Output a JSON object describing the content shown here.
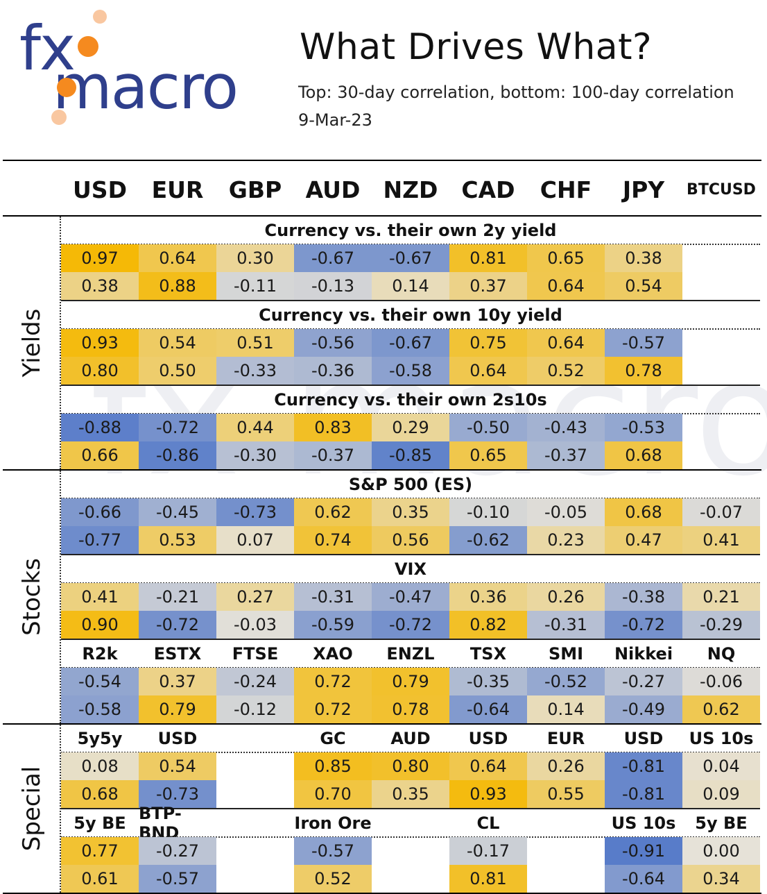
{
  "header": {
    "logo_fx": "fx",
    "logo_macro": "macro",
    "title": "What Drives What?",
    "subtitle": "Top: 30-day correlation, bottom: 100-day correlation",
    "date": "9-Mar-23"
  },
  "colors": {
    "positive": "#f5b800",
    "negative": "#4a72c8",
    "neutral": "#e6e2d8",
    "logo_blue": "#2f3f8c",
    "logo_orange": "#f58a1f"
  },
  "chart_data": {
    "type": "heatmap",
    "title": "What Drives What?",
    "columns": [
      "USD",
      "EUR",
      "GBP",
      "AUD",
      "NZD",
      "CAD",
      "CHF",
      "JPY",
      "BTCUSD"
    ],
    "groups": [
      {
        "label": "Yields",
        "sections": [
          {
            "title": "Currency vs. their own 2y yield",
            "sublabels": null,
            "top": [
              0.97,
              0.64,
              0.3,
              -0.67,
              -0.67,
              0.81,
              0.65,
              0.38,
              null
            ],
            "bottom": [
              0.38,
              0.88,
              -0.11,
              -0.13,
              0.14,
              0.37,
              0.64,
              0.54,
              null
            ]
          },
          {
            "title": "Currency vs. their own 10y yield",
            "sublabels": null,
            "top": [
              0.93,
              0.54,
              0.51,
              -0.56,
              -0.67,
              0.75,
              0.64,
              -0.57,
              null
            ],
            "bottom": [
              0.8,
              0.5,
              -0.33,
              -0.36,
              -0.58,
              0.64,
              0.52,
              0.78,
              null
            ]
          },
          {
            "title": "Currency vs. their own 2s10s",
            "sublabels": null,
            "top": [
              -0.88,
              -0.72,
              0.44,
              0.83,
              0.29,
              -0.5,
              -0.43,
              -0.53,
              null
            ],
            "bottom": [
              0.66,
              -0.86,
              -0.3,
              -0.37,
              -0.85,
              0.65,
              -0.37,
              0.68,
              null
            ]
          }
        ]
      },
      {
        "label": "Stocks",
        "sections": [
          {
            "title": "S&P 500 (ES)",
            "sublabels": null,
            "top": [
              -0.66,
              -0.45,
              -0.73,
              0.62,
              0.35,
              -0.1,
              -0.05,
              0.68,
              -0.07
            ],
            "bottom": [
              -0.77,
              0.53,
              0.07,
              0.74,
              0.56,
              -0.62,
              0.23,
              0.47,
              0.41
            ]
          },
          {
            "title": "VIX",
            "sublabels": null,
            "top": [
              0.41,
              -0.21,
              0.27,
              -0.31,
              -0.47,
              0.36,
              0.26,
              -0.38,
              0.21
            ],
            "bottom": [
              0.9,
              -0.72,
              -0.03,
              -0.59,
              -0.72,
              0.82,
              -0.31,
              -0.72,
              -0.29
            ]
          },
          {
            "title": "",
            "sublabels": [
              "R2k",
              "ESTX",
              "FTSE",
              "XAO",
              "ENZL",
              "TSX",
              "SMI",
              "Nikkei",
              "NQ"
            ],
            "top": [
              -0.54,
              0.37,
              -0.24,
              0.72,
              0.79,
              -0.35,
              -0.52,
              -0.27,
              -0.06
            ],
            "bottom": [
              -0.58,
              0.79,
              -0.12,
              0.72,
              0.78,
              -0.64,
              0.14,
              -0.49,
              0.62
            ]
          }
        ]
      },
      {
        "label": "Special",
        "sections": [
          {
            "title": "",
            "sublabels": [
              "5y5y",
              "USD",
              "",
              "GC",
              "AUD",
              "USD",
              "EUR",
              "USD",
              "US 10s"
            ],
            "top": [
              0.08,
              0.54,
              null,
              0.85,
              0.8,
              0.64,
              0.26,
              -0.81,
              0.04
            ],
            "bottom": [
              0.68,
              -0.73,
              null,
              0.7,
              0.35,
              0.93,
              0.55,
              -0.81,
              0.09
            ]
          },
          {
            "title": "",
            "sublabels": [
              "5y BE",
              "BTP-BND",
              "",
              "Iron Ore",
              "",
              "CL",
              "",
              "US 10s",
              "5y BE"
            ],
            "top": [
              0.77,
              -0.27,
              null,
              -0.57,
              null,
              -0.17,
              null,
              -0.91,
              0.0
            ],
            "bottom": [
              0.61,
              -0.57,
              null,
              0.52,
              null,
              0.81,
              null,
              -0.64,
              0.34
            ]
          }
        ]
      }
    ]
  }
}
